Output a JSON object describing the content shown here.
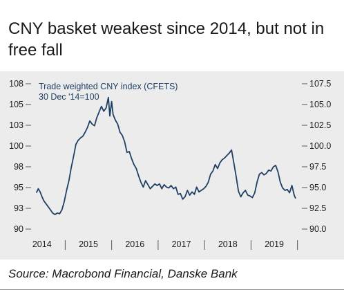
{
  "title": "CNY basket weakest since 2014, but not in free fall",
  "source": "Source: Macrobond Financial, Danske Bank",
  "colors": {
    "line": "#1f3f63",
    "panel": "#ececec",
    "text": "#1a1a1a",
    "axis": "#555555"
  },
  "chart_data": {
    "type": "line",
    "annotation": [
      "Trade weighted CNY index (CFETS)",
      "30 Dec '14=100"
    ],
    "left_ticks": [
      "108",
      "105",
      "103",
      "100",
      "98",
      "95",
      "93",
      "90"
    ],
    "right_ticks": [
      "107.5",
      "105.0",
      "102.5",
      "100.0",
      "97.5",
      "95.0",
      "92.5",
      "90.0"
    ],
    "ylim": [
      90,
      108
    ],
    "x_labels": [
      "2014",
      "2015",
      "2016",
      "2017",
      "2018",
      "2019"
    ],
    "xlim": [
      2013.96,
      2019.64
    ],
    "grid": false,
    "series": [
      {
        "x": [
          2014.0,
          2014.04,
          2014.08,
          2014.12,
          2014.16,
          2014.2,
          2014.25,
          2014.3,
          2014.35,
          2014.4,
          2014.45,
          2014.5,
          2014.55,
          2014.6,
          2014.65,
          2014.7,
          2014.75,
          2014.8,
          2014.85,
          2014.9,
          2014.95,
          2015.0,
          2015.05,
          2015.1,
          2015.15,
          2015.2,
          2015.25,
          2015.3,
          2015.35,
          2015.4,
          2015.45,
          2015.5,
          2015.55,
          2015.58,
          2015.62,
          2015.65,
          2015.7,
          2015.75,
          2015.8,
          2015.85,
          2015.9,
          2015.95,
          2016.0,
          2016.05,
          2016.1,
          2016.15,
          2016.2,
          2016.25,
          2016.3,
          2016.35,
          2016.4,
          2016.45,
          2016.5,
          2016.55,
          2016.6,
          2016.65,
          2016.7,
          2016.75,
          2016.8,
          2016.85,
          2016.9,
          2016.95,
          2017.0,
          2017.05,
          2017.1,
          2017.15,
          2017.2,
          2017.25,
          2017.3,
          2017.35,
          2017.4,
          2017.45,
          2017.5,
          2017.55,
          2017.6,
          2017.65,
          2017.7,
          2017.75,
          2017.8,
          2017.85,
          2017.9,
          2017.95,
          2018.0,
          2018.05,
          2018.1,
          2018.15,
          2018.2,
          2018.25,
          2018.3,
          2018.35,
          2018.4,
          2018.45,
          2018.5,
          2018.55,
          2018.6,
          2018.65,
          2018.7,
          2018.75,
          2018.8,
          2018.85,
          2018.9,
          2018.95,
          2019.0,
          2019.05,
          2019.1,
          2019.15,
          2019.2,
          2019.25,
          2019.3,
          2019.35,
          2019.4,
          2019.45,
          2019.5,
          2019.55,
          2019.58
        ],
        "y": [
          94.5,
          95.0,
          94.6,
          94.0,
          93.5,
          93.2,
          92.8,
          92.4,
          92.0,
          91.8,
          92.0,
          91.9,
          92.4,
          93.4,
          94.8,
          96.0,
          97.6,
          99.0,
          100.5,
          101.0,
          101.3,
          101.5,
          102.0,
          102.6,
          103.4,
          103.0,
          102.8,
          103.8,
          104.5,
          105.2,
          104.6,
          105.0,
          106.3,
          104.0,
          105.8,
          104.2,
          103.5,
          103.0,
          102.0,
          101.6,
          100.8,
          99.5,
          99.6,
          98.7,
          98.0,
          97.5,
          96.6,
          95.8,
          95.2,
          96.0,
          95.5,
          95.0,
          95.3,
          95.6,
          95.4,
          95.6,
          95.0,
          95.5,
          95.2,
          95.1,
          95.4,
          95.0,
          95.2,
          94.3,
          94.4,
          93.7,
          94.0,
          94.8,
          94.2,
          94.6,
          94.3,
          95.2,
          94.6,
          94.8,
          95.0,
          95.3,
          95.8,
          96.8,
          97.2,
          98.0,
          97.5,
          98.2,
          98.6,
          98.8,
          99.1,
          99.4,
          99.8,
          98.2,
          96.5,
          94.7,
          94.0,
          94.5,
          94.8,
          94.2,
          94.1,
          93.9,
          94.5,
          95.8,
          96.8,
          97.0,
          96.7,
          96.9,
          97.3,
          97.2,
          97.7,
          97.9,
          97.1,
          95.8,
          95.1,
          94.8,
          94.9,
          94.5,
          95.4,
          94.2,
          93.8
        ]
      }
    ]
  }
}
